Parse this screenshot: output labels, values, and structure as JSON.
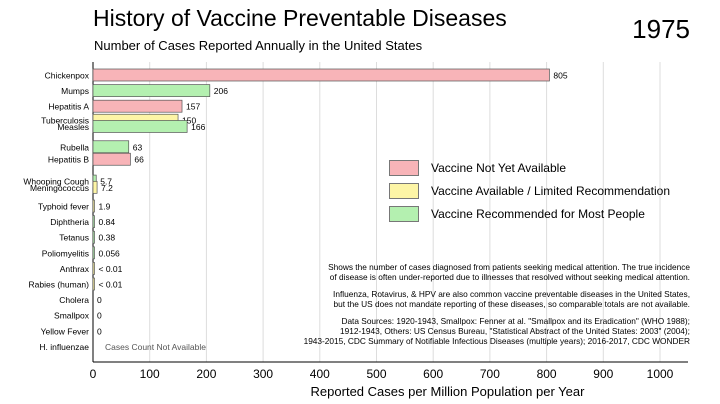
{
  "header": {
    "title": "History of Vaccine Preventable Diseases",
    "subtitle": "Number of Cases Reported Annually in the United States",
    "year": "1975"
  },
  "legend": {
    "items": [
      {
        "label": "Vaccine Not Yet Available",
        "color": "#f8b4b8"
      },
      {
        "label": "Vaccine Available / Limited Recommendation",
        "color": "#fdf5a6"
      },
      {
        "label": "Vaccine Recommended for Most People",
        "color": "#b4f0b0"
      }
    ]
  },
  "notes": {
    "p1": "Shows the number of cases diagnosed from patients seeking medical attention.  The true incidence\nof disease is often under-reported due to illnesses that resolved without seeking medical attention.",
    "p2": "Influenza, Rotavirus, & HPV are also common vaccine preventable diseases in the United States,\nbut the US does not mandate reporting of these diseases, so comparable totals are not available.",
    "p3": "Data Sources: 1920-1943, Smallpox: Fenner at al. \"Smallpox and its Eradication\" (WHO 1988);\n1912-1943, Others: US Census Bureau, \"Statistical Abstract of the United States: 2003\" (2004);\n1943-2015, CDC Summary of Notifiable Infectious Diseases (multiple years); 2016-2017, CDC WONDER"
  },
  "chart_data": {
    "type": "bar",
    "orientation": "horizontal",
    "title": "History of Vaccine Preventable Diseases",
    "subtitle": "Number of Cases Reported Annually in the United States",
    "xlabel": "Reported Cases per Million Population per Year",
    "xlim": [
      0,
      1000
    ],
    "xticks": [
      "0",
      "100",
      "200",
      "300",
      "400",
      "500",
      "600",
      "700",
      "800",
      "900",
      "1000"
    ],
    "status_colors": {
      "not_available": "#f8b4b8",
      "limited": "#fdf5a6",
      "recommended": "#b4f0b0"
    },
    "bars": [
      {
        "category": "Chickenpox",
        "value": 805,
        "label": "805",
        "status": "not_available",
        "row": 0
      },
      {
        "category": "Mumps",
        "value": 206,
        "label": "206",
        "status": "recommended",
        "row": 1
      },
      {
        "category": "Hepatitis A",
        "value": 157,
        "label": "157",
        "status": "not_available",
        "row": 2
      },
      {
        "category": "Tuberculosis",
        "value": 150,
        "label": "150",
        "status": "limited",
        "row": 2.9
      },
      {
        "category": "Measles",
        "value": 166,
        "label": "166",
        "status": "recommended",
        "row": 3.3
      },
      {
        "category": "Rubella",
        "value": 63,
        "label": "63",
        "status": "recommended",
        "row": 4.6
      },
      {
        "category": "Hepatitis B",
        "value": 66,
        "label": "66",
        "status": "not_available",
        "row": 5.4
      },
      {
        "category": "Whooping Cough",
        "value": 5.7,
        "label": "5.7",
        "status": "recommended",
        "row": 6.8
      },
      {
        "category": "Meningococcus",
        "value": 7.2,
        "label": "7.2",
        "status": "limited",
        "row": 7.2
      },
      {
        "category": "Typhoid fever",
        "value": 1.9,
        "label": "1.9",
        "status": "limited",
        "row": 8.4
      },
      {
        "category": "Diphtheria",
        "value": 0.84,
        "label": "0.84",
        "status": "recommended",
        "row": 9.4
      },
      {
        "category": "Tetanus",
        "value": 0.38,
        "label": "0.38",
        "status": "recommended",
        "row": 10.4
      },
      {
        "category": "Poliomyelitis",
        "value": 0.056,
        "label": "0.056",
        "status": "recommended",
        "row": 11.4
      },
      {
        "category": "Anthrax",
        "value": 0.005,
        "label": "< 0.01",
        "status": "limited",
        "row": 12.4
      },
      {
        "category": "Rabies (human)",
        "value": 0.005,
        "label": "< 0.01",
        "status": "limited",
        "row": 13.4
      },
      {
        "category": "Cholera",
        "value": 0,
        "label": "0",
        "status": "limited",
        "row": 14.4
      },
      {
        "category": "Smallpox",
        "value": 0,
        "label": "0",
        "status": "recommended",
        "row": 15.4
      },
      {
        "category": "Yellow Fever",
        "value": 0,
        "label": "0",
        "status": "limited",
        "row": 16.4
      },
      {
        "category": "H. influenzae",
        "value": 0,
        "label": "Cases Count Not Available",
        "status": "none",
        "row": 17.4
      }
    ]
  }
}
